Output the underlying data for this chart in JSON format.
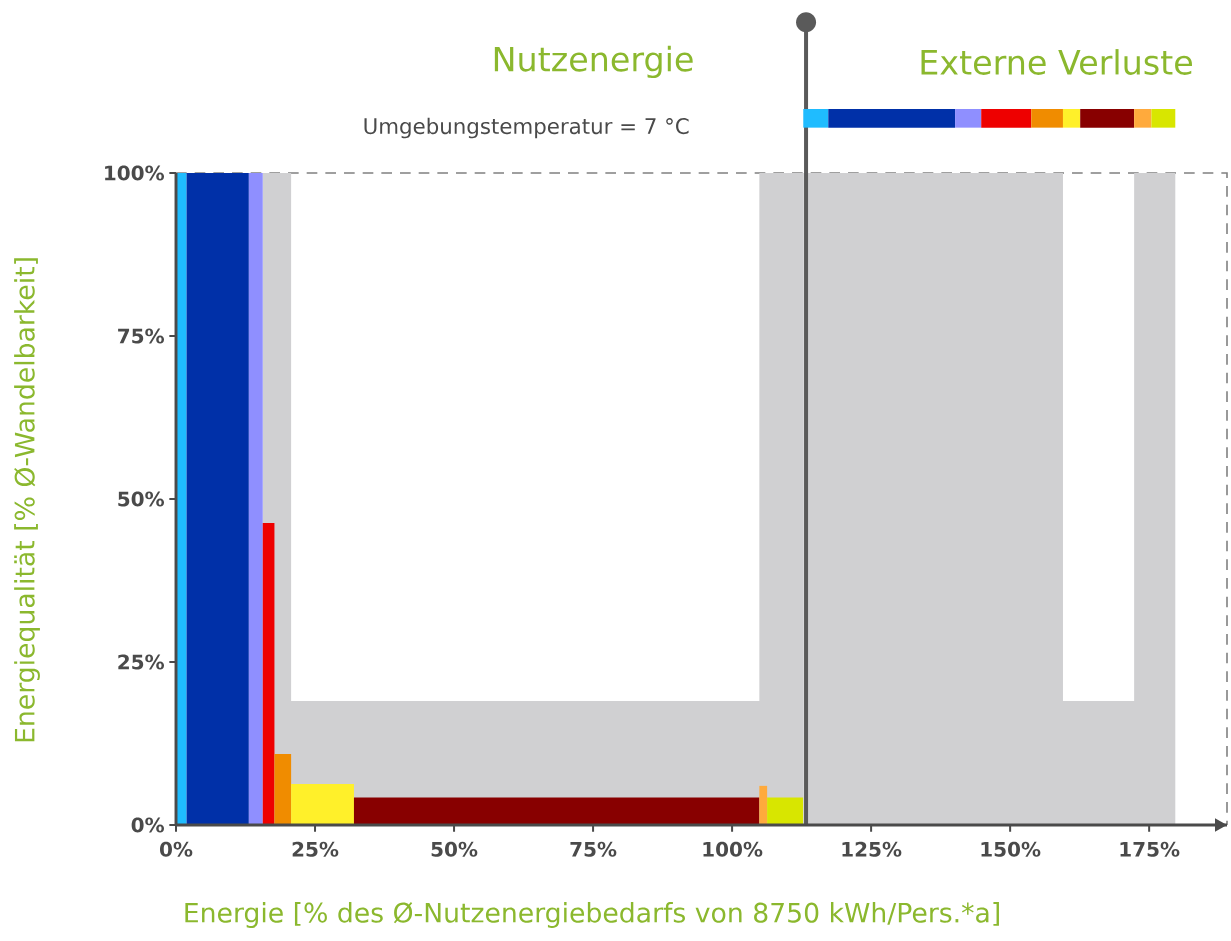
{
  "chart_data": {
    "type": "area",
    "xlabel": "Energie [% des Ø-Nutzenergiebedarfs von 8750 kWh/Pers.*a]",
    "ylabel": "Energiequalität [% Ø-Wandelbarkeit]",
    "annotations": [
      "Nutzenergie",
      "Externe Verluste",
      "Umgebungstemperatur = 7 °C"
    ],
    "xlim": [
      0,
      189
    ],
    "ylim": [
      0,
      100
    ],
    "xticks": [
      {
        "value": 0,
        "label": "0%"
      },
      {
        "value": 25,
        "label": "25%"
      },
      {
        "value": 50,
        "label": "50%"
      },
      {
        "value": 75,
        "label": "75%"
      },
      {
        "value": 100,
        "label": "100%"
      },
      {
        "value": 125,
        "label": "125%"
      },
      {
        "value": 150,
        "label": "150%"
      },
      {
        "value": 175,
        "label": "175%"
      }
    ],
    "yticks": [
      {
        "value": 0,
        "label": "0%"
      },
      {
        "value": 25,
        "label": "25%"
      },
      {
        "value": 50,
        "label": "50%"
      },
      {
        "value": 75,
        "label": "75%"
      },
      {
        "value": 100,
        "label": "100%"
      }
    ],
    "ref_lines": [
      {
        "axis": "x",
        "value": 113.3,
        "color": "#5a5a5a"
      }
    ],
    "series": [
      {
        "color": "#d0d0d2",
        "x": [
          15.6,
          17.7,
          17.7,
          20.7,
          20.7,
          32.0,
          32.0,
          104.9,
          104.9,
          106.3,
          106.3,
          112.8
        ],
        "values": [
          100,
          100,
          100,
          100,
          19,
          19,
          19,
          19,
          100,
          100,
          100,
          100
        ]
      },
      {
        "color": "#1fbcff",
        "x": [
          0,
          1.9
        ],
        "values": [
          100,
          100
        ]
      },
      {
        "color": "#0030a8",
        "x": [
          1.9,
          13.1
        ],
        "values": [
          100,
          100
        ]
      },
      {
        "color": "#8f8fff",
        "x": [
          13.1,
          15.6
        ],
        "values": [
          100,
          100
        ]
      },
      {
        "color": "#ee0000",
        "x": [
          15.6,
          17.7
        ],
        "values": [
          46.3,
          46.3
        ]
      },
      {
        "color": "#f08c00",
        "x": [
          17.7,
          20.7
        ],
        "values": [
          10.9,
          10.9
        ]
      },
      {
        "color": "#fff02a",
        "x": [
          20.7,
          32.0
        ],
        "values": [
          6.3,
          6.3
        ]
      },
      {
        "color": "#880000",
        "x": [
          32.0,
          104.9
        ],
        "values": [
          4.2,
          4.2
        ]
      },
      {
        "color": "#ffaa3c",
        "x": [
          104.9,
          106.3
        ],
        "values": [
          6.0,
          6.0
        ]
      },
      {
        "color": "#d8e600",
        "x": [
          106.3,
          112.8
        ],
        "values": [
          4.2,
          4.2
        ]
      },
      {
        "color": "#d0d0d2",
        "x": [
          112.8,
          117.3,
          140.1,
          144.8,
          153.8,
          159.5,
          159.5,
          162.6,
          172.3,
          172.3,
          175.4,
          179.7
        ],
        "values": [
          100,
          100,
          100,
          100,
          100,
          100,
          19,
          19,
          19,
          100,
          100,
          100
        ]
      }
    ]
  }
}
